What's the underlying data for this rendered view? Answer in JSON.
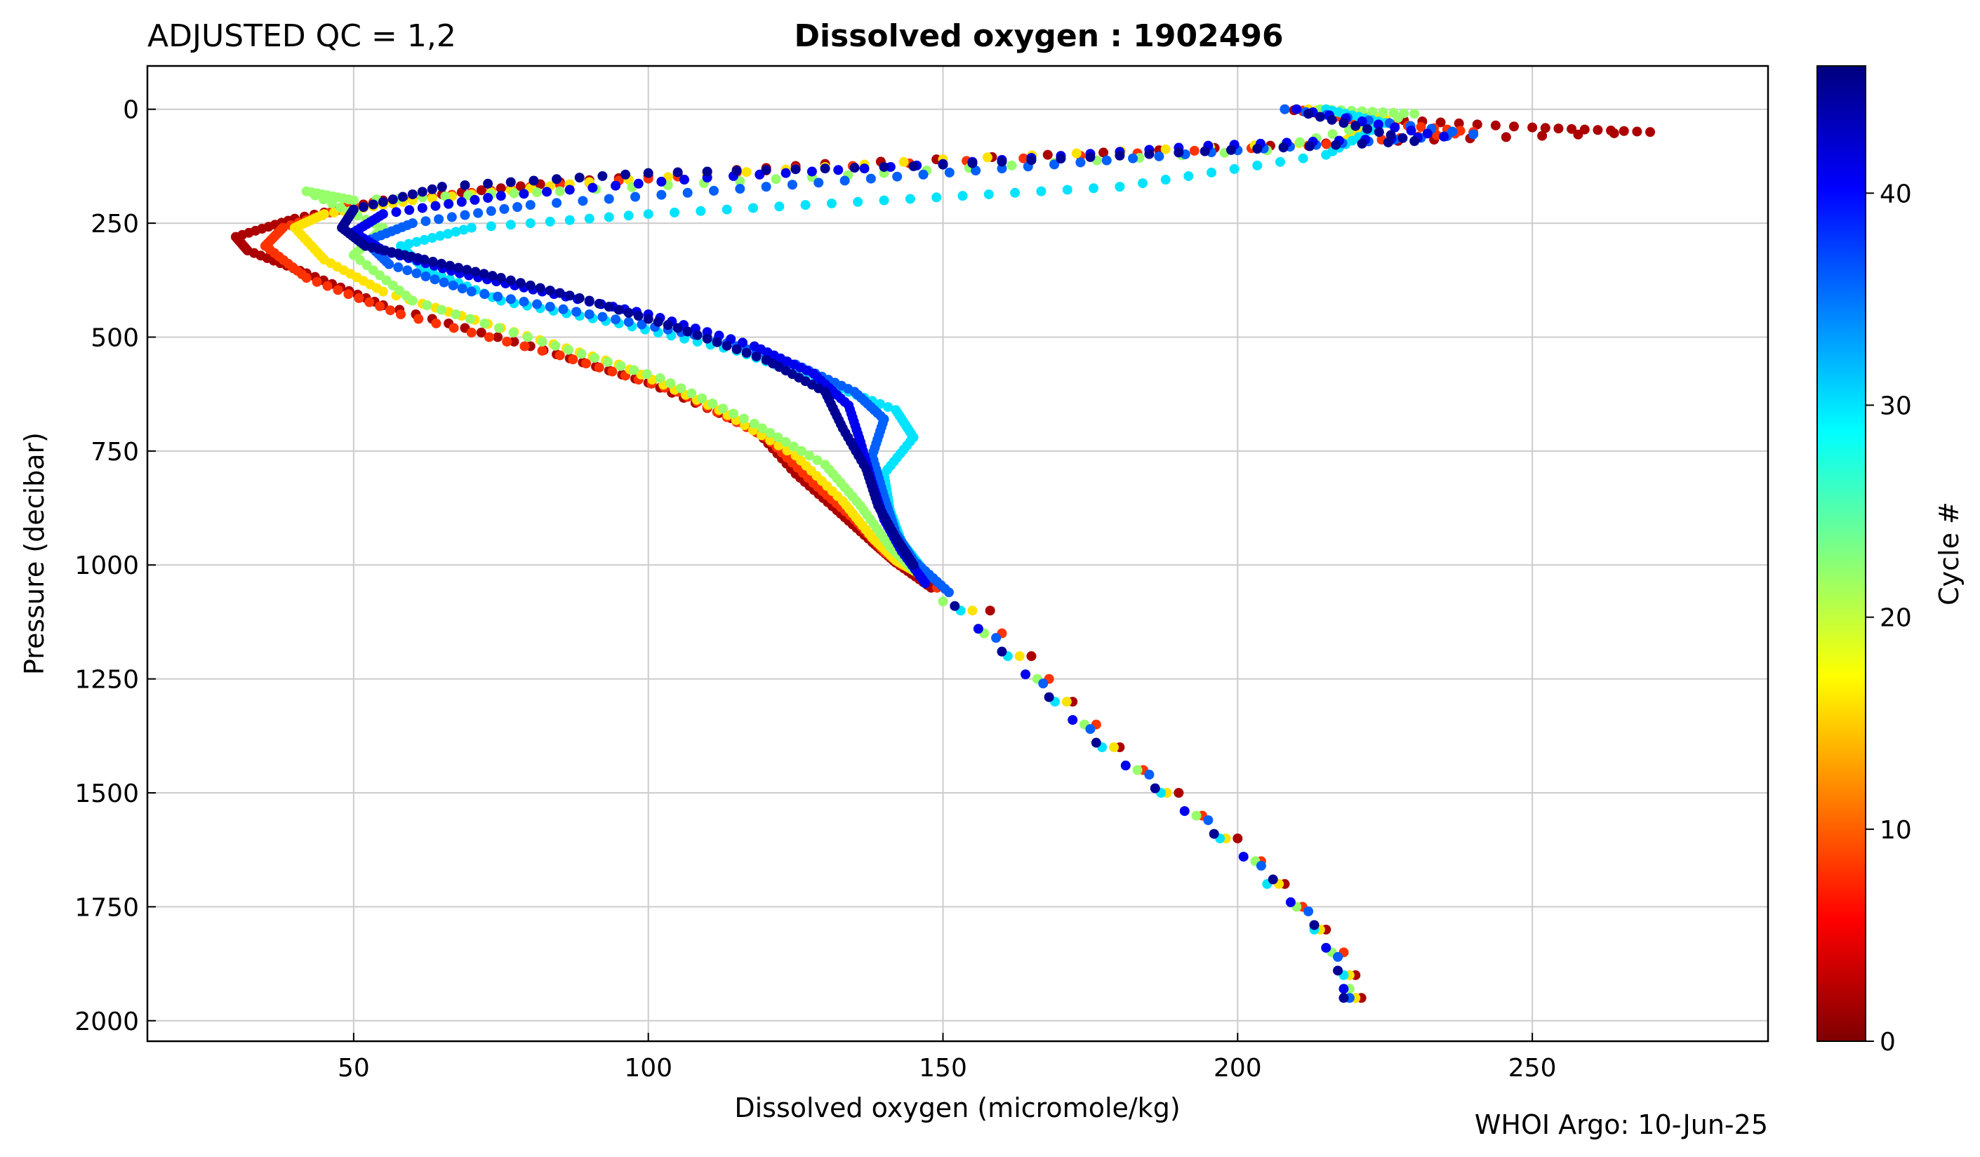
{
  "header": {
    "qc_label": "ADJUSTED QC = 1,2",
    "title": "Dissolved oxygen : 1902496"
  },
  "footer": {
    "credit": "WHOI Argo: 10-Jun-25"
  },
  "chart_data": {
    "type": "scatter",
    "title": "Dissolved oxygen : 1902496",
    "xlabel": "Dissolved oxygen  (micromole/kg)",
    "ylabel": "Pressure  (decibar)",
    "xlim": [
      15,
      290
    ],
    "ylim": [
      2045,
      -95
    ],
    "y_inverted": true,
    "grid": true,
    "xticks": [
      50,
      100,
      150,
      200,
      250
    ],
    "yticks": [
      0,
      250,
      500,
      750,
      1000,
      1250,
      1500,
      1750,
      2000
    ],
    "colorbar": {
      "label": "Cycle #",
      "range": [
        0,
        46
      ],
      "ticks": [
        0,
        10,
        20,
        30,
        40
      ],
      "colormap": "jet",
      "colors": [
        "#7f0000",
        "#ff0000",
        "#ff8000",
        "#ffff00",
        "#80ff80",
        "#00ffff",
        "#0080ff",
        "#0000ff",
        "#00007f"
      ]
    },
    "series": [
      {
        "cycle": 2,
        "points": [
          [
            208,
            0
          ],
          [
            222,
            20
          ],
          [
            250,
            40
          ],
          [
            270,
            50
          ],
          [
            215,
            75
          ],
          [
            130,
            120
          ],
          [
            85,
            160
          ],
          [
            55,
            200
          ],
          [
            40,
            240
          ],
          [
            30,
            280
          ],
          [
            32,
            310
          ],
          [
            42,
            360
          ],
          [
            55,
            430
          ],
          [
            80,
            520
          ],
          [
            100,
            600
          ],
          [
            118,
            700
          ],
          [
            125,
            800
          ],
          [
            132,
            880
          ],
          [
            138,
            950
          ],
          [
            142,
            995
          ],
          [
            148,
            1050
          ],
          [
            158,
            1100
          ],
          [
            165,
            1200
          ],
          [
            172,
            1300
          ],
          [
            180,
            1400
          ],
          [
            190,
            1500
          ],
          [
            200,
            1600
          ],
          [
            208,
            1700
          ],
          [
            215,
            1800
          ],
          [
            220,
            1900
          ],
          [
            221,
            1950
          ]
        ]
      },
      {
        "cycle": 8,
        "points": [
          [
            210,
            0
          ],
          [
            220,
            25
          ],
          [
            240,
            50
          ],
          [
            212,
            80
          ],
          [
            125,
            130
          ],
          [
            80,
            170
          ],
          [
            50,
            210
          ],
          [
            38,
            260
          ],
          [
            35,
            300
          ],
          [
            42,
            370
          ],
          [
            58,
            450
          ],
          [
            85,
            540
          ],
          [
            105,
            620
          ],
          [
            120,
            720
          ],
          [
            128,
            820
          ],
          [
            135,
            900
          ],
          [
            140,
            970
          ],
          [
            143,
            1000
          ],
          [
            149,
            1050
          ],
          [
            160,
            1150
          ],
          [
            168,
            1250
          ],
          [
            176,
            1350
          ],
          [
            184,
            1450
          ],
          [
            194,
            1550
          ],
          [
            204,
            1650
          ],
          [
            211,
            1750
          ],
          [
            218,
            1850
          ],
          [
            220,
            1950
          ]
        ]
      },
      {
        "cycle": 16,
        "points": [
          [
            212,
            0
          ],
          [
            225,
            20
          ],
          [
            218,
            70
          ],
          [
            150,
            110
          ],
          [
            90,
            160
          ],
          [
            60,
            200
          ],
          [
            45,
            230
          ],
          [
            40,
            260
          ],
          [
            45,
            330
          ],
          [
            55,
            400
          ],
          [
            75,
            480
          ],
          [
            95,
            560
          ],
          [
            112,
            660
          ],
          [
            125,
            760
          ],
          [
            133,
            860
          ],
          [
            138,
            940
          ],
          [
            142,
            990
          ],
          [
            146,
            1020
          ],
          [
            155,
            1100
          ],
          [
            163,
            1200
          ],
          [
            171,
            1300
          ],
          [
            179,
            1400
          ],
          [
            188,
            1500
          ],
          [
            198,
            1600
          ],
          [
            207,
            1700
          ],
          [
            214,
            1800
          ],
          [
            219,
            1900
          ],
          [
            220,
            1950
          ]
        ]
      },
      {
        "cycle": 22,
        "points": [
          [
            214,
            0
          ],
          [
            230,
            10
          ],
          [
            205,
            90
          ],
          [
            140,
            140
          ],
          [
            85,
            180
          ],
          [
            50,
            200
          ],
          [
            42,
            180
          ],
          [
            55,
            260
          ],
          [
            50,
            320
          ],
          [
            60,
            420
          ],
          [
            82,
            510
          ],
          [
            102,
            590
          ],
          [
            118,
            690
          ],
          [
            130,
            780
          ],
          [
            136,
            870
          ],
          [
            141,
            960
          ],
          [
            145,
            1010
          ],
          [
            150,
            1080
          ],
          [
            157,
            1150
          ],
          [
            166,
            1250
          ],
          [
            174,
            1350
          ],
          [
            183,
            1450
          ],
          [
            193,
            1550
          ],
          [
            203,
            1650
          ],
          [
            210,
            1750
          ],
          [
            216,
            1850
          ],
          [
            219,
            1930
          ]
        ]
      },
      {
        "cycle": 30,
        "points": [
          [
            215,
            0
          ],
          [
            225,
            30
          ],
          [
            215,
            100
          ],
          [
            180,
            170
          ],
          [
            140,
            200
          ],
          [
            100,
            230
          ],
          [
            70,
            260
          ],
          [
            58,
            300
          ],
          [
            62,
            350
          ],
          [
            75,
            420
          ],
          [
            95,
            470
          ],
          [
            115,
            530
          ],
          [
            130,
            600
          ],
          [
            142,
            660
          ],
          [
            145,
            720
          ],
          [
            140,
            800
          ],
          [
            141,
            880
          ],
          [
            143,
            950
          ],
          [
            146,
            1000
          ],
          [
            153,
            1100
          ],
          [
            161,
            1200
          ],
          [
            169,
            1300
          ],
          [
            177,
            1400
          ],
          [
            187,
            1500
          ],
          [
            197,
            1600
          ],
          [
            205,
            1700
          ],
          [
            213,
            1800
          ],
          [
            218,
            1900
          ],
          [
            219,
            1950
          ]
        ]
      },
      {
        "cycle": 36,
        "points": [
          [
            208,
            0
          ],
          [
            240,
            55
          ],
          [
            200,
            90
          ],
          [
            160,
            130
          ],
          [
            120,
            170
          ],
          [
            80,
            210
          ],
          [
            60,
            250
          ],
          [
            52,
            290
          ],
          [
            56,
            340
          ],
          [
            70,
            400
          ],
          [
            90,
            450
          ],
          [
            110,
            500
          ],
          [
            125,
            560
          ],
          [
            135,
            620
          ],
          [
            140,
            680
          ],
          [
            138,
            760
          ],
          [
            140,
            850
          ],
          [
            142,
            930
          ],
          [
            145,
            990
          ],
          [
            151,
            1060
          ],
          [
            159,
            1160
          ],
          [
            167,
            1260
          ],
          [
            175,
            1360
          ],
          [
            185,
            1460
          ],
          [
            195,
            1560
          ],
          [
            204,
            1660
          ],
          [
            212,
            1760
          ],
          [
            217,
            1860
          ],
          [
            219,
            1950
          ]
        ]
      },
      {
        "cycle": 41,
        "points": [
          [
            210,
            0
          ],
          [
            235,
            60
          ],
          [
            195,
            80
          ],
          [
            150,
            120
          ],
          [
            110,
            150
          ],
          [
            75,
            190
          ],
          [
            55,
            230
          ],
          [
            50,
            270
          ],
          [
            55,
            310
          ],
          [
            68,
            360
          ],
          [
            82,
            400
          ],
          [
            100,
            450
          ],
          [
            118,
            520
          ],
          [
            128,
            580
          ],
          [
            134,
            650
          ],
          [
            136,
            730
          ],
          [
            138,
            820
          ],
          [
            140,
            900
          ],
          [
            143,
            970
          ],
          [
            147,
            1040
          ],
          [
            156,
            1140
          ],
          [
            164,
            1240
          ],
          [
            172,
            1340
          ],
          [
            181,
            1440
          ],
          [
            191,
            1540
          ],
          [
            201,
            1640
          ],
          [
            209,
            1740
          ],
          [
            215,
            1840
          ],
          [
            218,
            1930
          ]
        ]
      },
      {
        "cycle": 45,
        "points": [
          [
            212,
            10
          ],
          [
            230,
            70
          ],
          [
            190,
            95
          ],
          [
            145,
            125
          ],
          [
            100,
            140
          ],
          [
            65,
            170
          ],
          [
            50,
            220
          ],
          [
            48,
            260
          ],
          [
            52,
            300
          ],
          [
            62,
            330
          ],
          [
            75,
            370
          ],
          [
            90,
            420
          ],
          [
            105,
            480
          ],
          [
            120,
            550
          ],
          [
            130,
            620
          ],
          [
            133,
            700
          ],
          [
            137,
            790
          ],
          [
            139,
            870
          ],
          [
            142,
            940
          ],
          [
            145,
            1000
          ],
          [
            152,
            1090
          ],
          [
            160,
            1190
          ],
          [
            168,
            1290
          ],
          [
            176,
            1390
          ],
          [
            186,
            1490
          ],
          [
            196,
            1590
          ],
          [
            206,
            1690
          ],
          [
            213,
            1790
          ],
          [
            217,
            1890
          ],
          [
            218,
            1950
          ]
        ]
      }
    ]
  }
}
